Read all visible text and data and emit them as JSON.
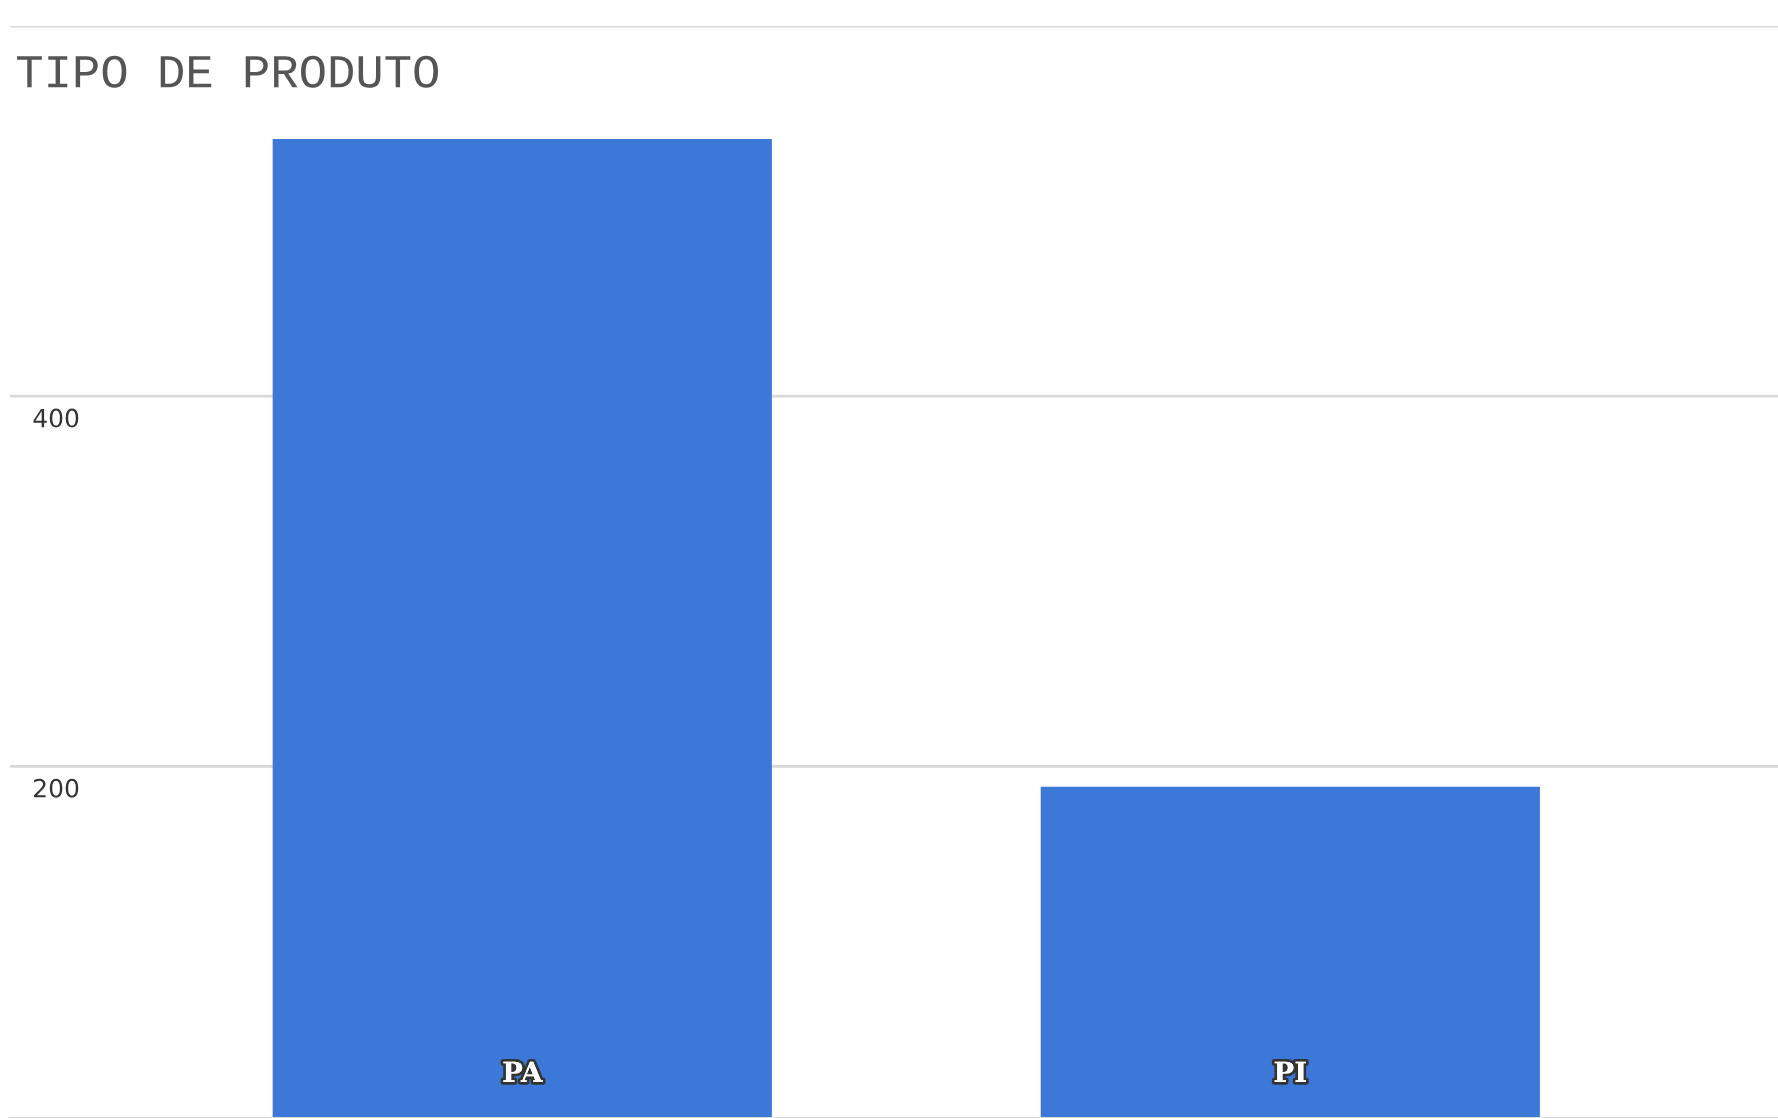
{
  "chart_data": {
    "type": "bar",
    "title": "TIPO DE PRODUTO",
    "categories": [
      "PA",
      "PI"
    ],
    "values": [
      539,
      189
    ],
    "color": "#3c78d8",
    "ylim": [
      10,
      600
    ],
    "yticks": [
      200,
      400,
      {
        "value": 600,
        "label": null
      }
    ],
    "grid": "y"
  }
}
